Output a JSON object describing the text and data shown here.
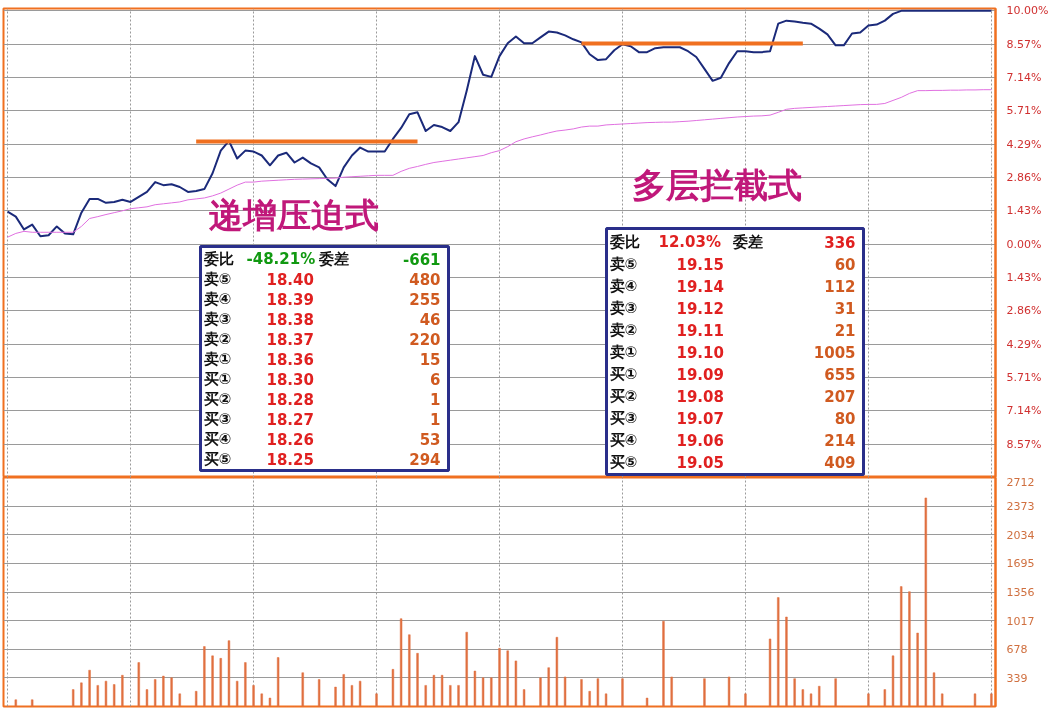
{
  "chart_data": [
    {
      "type": "line",
      "categories": [
        null,
        null,
        null,
        null,
        null,
        null,
        null,
        null,
        null,
        null,
        null,
        null,
        null,
        null,
        null,
        null,
        null,
        null,
        null,
        null,
        null,
        null,
        null,
        null,
        null,
        null,
        null,
        null,
        null,
        null,
        null,
        null,
        null,
        null,
        null,
        null,
        null,
        null,
        null,
        null,
        null,
        null,
        null,
        null,
        null,
        null,
        null,
        null,
        null,
        null,
        null,
        null,
        null,
        null,
        null,
        null,
        null,
        null,
        null,
        null,
        null,
        null,
        null,
        null,
        null,
        null,
        null,
        null,
        null,
        null,
        null,
        null,
        null,
        null,
        null,
        null,
        null,
        null,
        null,
        null,
        null,
        null,
        null,
        null,
        null,
        null,
        null,
        null,
        null,
        null,
        null,
        null,
        null,
        null,
        null,
        null,
        null,
        null,
        null,
        null,
        null,
        null,
        null,
        null,
        null,
        null,
        null,
        null,
        null,
        null,
        null,
        null,
        null,
        null,
        null,
        null,
        null,
        null,
        null,
        null,
        null
      ],
      "series": [
        {
          "color": "#1b2a7a",
          "values": [
            1.39,
            1.18,
            0.63,
            0.84,
            0.34,
            0.38,
            0.76,
            0.46,
            0.42,
            1.35,
            1.94,
            1.94,
            1.77,
            1.81,
            1.9,
            1.81,
            2.03,
            2.24,
            2.66,
            2.53,
            2.57,
            2.45,
            2.24,
            2.28,
            2.36,
            3.04,
            4.01,
            4.43,
            3.67,
            4.01,
            3.97,
            3.8,
            3.38,
            3.8,
            3.92,
            3.5,
            3.71,
            3.46,
            3.29,
            2.78,
            2.49,
            3.29,
            3.8,
            4.14,
            3.97,
            3.97,
            3.97,
            4.51,
            4.98,
            5.57,
            5.65,
            4.85,
            5.11,
            5.02,
            4.85,
            5.23,
            6.58,
            8.06,
            7.26,
            7.17,
            8.06,
            8.61,
            8.9,
            8.61,
            8.61,
            8.86,
            9.11,
            9.07,
            8.95,
            8.78,
            8.65,
            8.14,
            7.89,
            7.93,
            8.31,
            8.57,
            8.48,
            8.23,
            8.23,
            8.4,
            8.44,
            8.44,
            8.44,
            8.27,
            8.02,
            7.51,
            7.0,
            7.13,
            7.76,
            8.27,
            8.27,
            8.23,
            8.23,
            8.27,
            9.45,
            9.58,
            9.54,
            9.49,
            9.45,
            9.24,
            8.99,
            8.52,
            8.52,
            9.03,
            9.07,
            9.37,
            9.41,
            9.58,
            9.87,
            10,
            10,
            10,
            10,
            10,
            10,
            10,
            10,
            10,
            10,
            10,
            10
          ]
        },
        {
          "color": "#e070e0",
          "values": [
            0.3,
            0.46,
            0.55,
            0.51,
            0.51,
            0.51,
            0.51,
            0.51,
            0.51,
            0.76,
            1.1,
            1.18,
            1.27,
            1.35,
            1.43,
            1.52,
            1.56,
            1.6,
            1.69,
            1.73,
            1.77,
            1.81,
            1.9,
            1.94,
            1.98,
            2.07,
            2.19,
            2.36,
            2.53,
            2.66,
            2.66,
            2.7,
            2.72,
            2.74,
            2.76,
            2.78,
            2.79,
            2.8,
            2.81,
            2.82,
            2.83,
            2.87,
            2.89,
            2.91,
            2.93,
            2.95,
            2.95,
            2.95,
            3.12,
            3.25,
            3.33,
            3.42,
            3.5,
            3.55,
            3.6,
            3.65,
            3.7,
            3.75,
            3.8,
            3.92,
            4.01,
            4.18,
            4.39,
            4.51,
            4.6,
            4.68,
            4.77,
            4.85,
            4.89,
            4.94,
            5.02,
            5.06,
            5.06,
            5.11,
            5.13,
            5.15,
            5.17,
            5.19,
            5.21,
            5.22,
            5.23,
            5.23,
            5.25,
            5.27,
            5.3,
            5.33,
            5.36,
            5.39,
            5.42,
            5.45,
            5.47,
            5.49,
            5.5,
            5.53,
            5.65,
            5.78,
            5.82,
            5.84,
            5.86,
            5.88,
            5.9,
            5.92,
            5.94,
            5.96,
            5.98,
            5.99,
            5.99,
            6.03,
            6.16,
            6.29,
            6.46,
            6.58,
            6.58,
            6.59,
            6.59,
            6.6,
            6.6,
            6.61,
            6.61,
            6.62,
            6.62
          ]
        },
        {
          "color": "#f07020",
          "values": [
            null,
            null,
            null,
            null,
            null,
            null,
            null,
            null,
            null,
            null,
            null,
            null,
            null,
            null,
            null,
            null,
            null,
            null,
            null,
            null,
            null,
            null,
            null,
            4.4,
            4.4,
            4.4,
            4.4,
            4.4,
            4.4,
            4.4,
            4.4,
            4.4,
            4.4,
            4.4,
            4.4,
            4.4,
            4.4,
            4.4,
            4.4,
            4.4,
            4.4,
            4.4,
            4.4,
            4.4,
            4.4,
            4.4,
            4.4,
            4.4,
            4.4,
            4.4,
            4.4,
            null,
            null,
            null,
            null,
            null,
            null,
            null,
            null,
            null,
            null,
            null,
            null,
            null,
            null,
            null,
            null,
            null,
            null,
            null,
            null,
            null,
            null,
            null,
            null,
            null,
            null,
            null,
            null,
            null,
            null,
            null,
            null,
            null,
            null,
            null,
            null,
            null,
            null,
            null,
            null,
            null,
            null,
            null,
            null,
            null,
            null,
            null,
            null,
            null,
            null,
            null,
            null,
            null,
            null,
            null,
            null,
            null,
            null,
            null,
            null,
            null,
            null,
            null,
            null,
            null,
            null,
            null,
            null,
            null,
            null
          ]
        },
        {
          "color": "#f07020",
          "values": [
            null,
            null,
            null,
            null,
            null,
            null,
            null,
            null,
            null,
            null,
            null,
            null,
            null,
            null,
            null,
            null,
            null,
            null,
            null,
            null,
            null,
            null,
            null,
            null,
            null,
            null,
            null,
            null,
            null,
            null,
            null,
            null,
            null,
            null,
            null,
            null,
            null,
            null,
            null,
            null,
            null,
            null,
            null,
            null,
            null,
            null,
            null,
            null,
            null,
            null,
            null,
            null,
            null,
            null,
            null,
            null,
            null,
            null,
            null,
            null,
            null,
            null,
            null,
            null,
            null,
            null,
            null,
            null,
            null,
            null,
            8.6,
            8.6,
            8.6,
            8.6,
            8.6,
            8.6,
            8.6,
            8.6,
            8.6,
            8.6,
            8.6,
            8.6,
            8.6,
            8.6,
            8.6,
            8.6,
            8.6,
            8.6,
            8.6,
            8.6,
            8.6,
            8.6,
            8.6,
            8.6,
            8.6,
            8.6,
            8.6,
            8.6,
            null,
            null,
            null,
            null,
            null,
            null,
            null,
            null,
            null,
            null,
            null,
            null,
            null,
            null,
            null,
            null,
            null,
            null,
            null,
            null,
            null,
            null,
            null
          ]
        }
      ],
      "ylim": [
        -10,
        10.1
      ],
      "yticks": [
        {
          "value": 10,
          "label": "10.00%"
        },
        {
          "value": 8.57,
          "label": "8.57%"
        },
        {
          "value": 7.14,
          "label": "7.14%"
        },
        {
          "value": 5.71,
          "label": "5.71%"
        },
        {
          "value": 4.29,
          "label": "4.29%"
        },
        {
          "value": 2.86,
          "label": "2.86%"
        },
        {
          "value": 1.43,
          "label": "1.43%"
        },
        {
          "value": 0,
          "label": "0.00%"
        },
        {
          "value": -1.43,
          "label": "1.43%"
        },
        {
          "value": -2.86,
          "label": "2.86%"
        },
        {
          "value": -4.29,
          "label": "4.29%"
        },
        {
          "value": -5.71,
          "label": "5.71%"
        },
        {
          "value": -7.14,
          "label": "7.14%"
        },
        {
          "value": -8.57,
          "label": "8.57%"
        }
      ],
      "grid": true,
      "tick_labels": "y",
      "annotations": [
        "递增压迫式",
        "委比",
        "-48.21%",
        "委差",
        "-661",
        "卖⑤",
        "18.40",
        "480",
        "卖④",
        "18.39",
        "255",
        "卖③",
        "18.38",
        "46",
        "卖②",
        "18.37",
        "220",
        "卖①",
        "18.36",
        "15",
        "买①",
        "18.30",
        "6",
        "买②",
        "18.28",
        "1",
        "买③",
        "18.27",
        "1",
        "买④",
        "18.26",
        "53",
        "买⑤",
        "18.25",
        "294",
        "多层拦截式",
        "委比",
        "12.03%",
        "委差",
        "336",
        "卖⑤",
        "19.15",
        "60",
        "卖④",
        "19.14",
        "112",
        "卖③",
        "19.12",
        "31",
        "卖②",
        "19.11",
        "21",
        "卖①",
        "19.10",
        "1005",
        "买①",
        "19.09",
        "655",
        "买②",
        "19.08",
        "207",
        "买③",
        "19.07",
        "80",
        "买④",
        "19.06",
        "214",
        "买⑤",
        "19.05",
        "409"
      ]
    },
    {
      "type": "bar",
      "categories": [
        null,
        null,
        null,
        null,
        null,
        null,
        null,
        null,
        null,
        null,
        null,
        null,
        null,
        null,
        null,
        null,
        null,
        null,
        null,
        null,
        null,
        null,
        null,
        null,
        null,
        null,
        null,
        null,
        null,
        null,
        null,
        null,
        null,
        null,
        null,
        null,
        null,
        null,
        null,
        null,
        null,
        null,
        null,
        null,
        null,
        null,
        null,
        null,
        null,
        null,
        null,
        null,
        null,
        null,
        null,
        null,
        null,
        null,
        null,
        null,
        null,
        null,
        null,
        null,
        null,
        null,
        null,
        null,
        null,
        null,
        null,
        null,
        null,
        null,
        null,
        null,
        null,
        null,
        null,
        null,
        null,
        null,
        null,
        null,
        null,
        null,
        null,
        null,
        null,
        null,
        null,
        null,
        null,
        null,
        null,
        null,
        null,
        null,
        null,
        null,
        null,
        null,
        null,
        null,
        null,
        null,
        null,
        null,
        null,
        null,
        null,
        null,
        null,
        null,
        null,
        null,
        null,
        null,
        null,
        null,
        null
      ],
      "color": "#e07040",
      "values": [
        0,
        80,
        0,
        80,
        0,
        0,
        0,
        0,
        200,
        280,
        430,
        250,
        300,
        260,
        370,
        0,
        520,
        200,
        320,
        360,
        340,
        150,
        0,
        180,
        710,
        600,
        570,
        780,
        300,
        520,
        250,
        150,
        100,
        580,
        0,
        0,
        400,
        0,
        320,
        0,
        230,
        380,
        250,
        300,
        0,
        150,
        0,
        440,
        1040,
        850,
        630,
        250,
        370,
        370,
        250,
        250,
        880,
        420,
        340,
        340,
        690,
        660,
        540,
        200,
        0,
        340,
        460,
        820,
        350,
        0,
        320,
        180,
        330,
        150,
        0,
        330,
        0,
        0,
        100,
        0,
        1010,
        350,
        0,
        0,
        0,
        330,
        0,
        0,
        350,
        0,
        150,
        0,
        0,
        800,
        1290,
        1060,
        330,
        200,
        150,
        240,
        0,
        330,
        0,
        0,
        0,
        150,
        0,
        200,
        600,
        1420,
        1360,
        870,
        2470,
        400,
        150,
        0,
        0,
        0,
        150,
        0,
        150
      ],
      "ylim": [
        0,
        2712
      ],
      "yticks": [
        339,
        678,
        1017,
        1356,
        1695,
        2034,
        2373,
        2712
      ],
      "grid": true,
      "tick_labels": "y"
    }
  ]
}
